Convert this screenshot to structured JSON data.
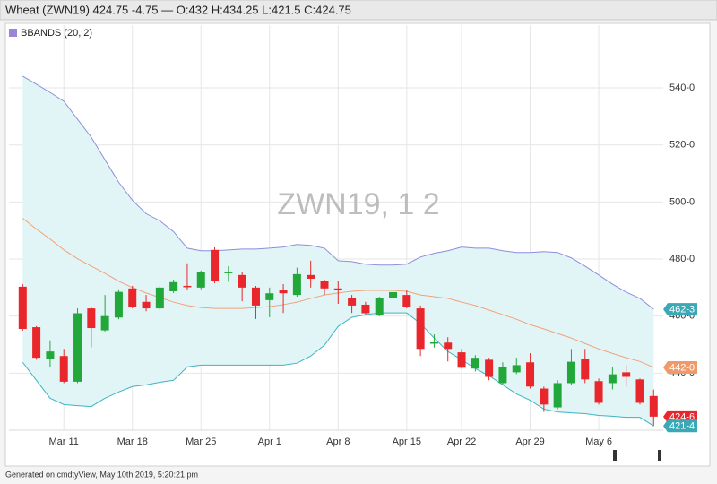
{
  "header": {
    "title": "Wheat (ZWN19) 424.75 -4.75 — O:432 H:434.25 L:421.5 C:424.75"
  },
  "footer": {
    "text": "Generated on cmdtyView, May 10th 2019, 5:20:21 pm"
  },
  "chart_data": {
    "type": "candlestick",
    "watermark": "ZWN19, 1 2",
    "categories": [
      null,
      null,
      null,
      "Mar 11",
      null,
      null,
      null,
      null,
      "Mar 18",
      null,
      null,
      null,
      null,
      "Mar 25",
      null,
      null,
      null,
      null,
      "Apr 1",
      null,
      null,
      null,
      null,
      "Apr 8",
      null,
      null,
      null,
      null,
      "Apr 15",
      null,
      null,
      null,
      "Apr 22",
      null,
      null,
      null,
      null,
      "Apr 29",
      null,
      null,
      null,
      null,
      "May 6",
      null,
      null,
      null,
      null
    ],
    "open": [
      470.3,
      456.1,
      445,
      446,
      437,
      462.7,
      455,
      459.5,
      469.7,
      465,
      462.7,
      468.7,
      470.6,
      470,
      483.2,
      475,
      474.4,
      470,
      465.6,
      469,
      467.4,
      474.4,
      472.2,
      469.7,
      466.5,
      464,
      460.5,
      466.5,
      467.4,
      462.7,
      450.5,
      450.7,
      447.3,
      441.6,
      444.7,
      436.5,
      440.3,
      443.8,
      434.6,
      428,
      436.5,
      445,
      437.2,
      436.5,
      440.3,
      437.8,
      432
    ],
    "high": [
      471.2,
      456.5,
      451.5,
      448.5,
      462.7,
      463.3,
      467.4,
      469.4,
      470.6,
      467.4,
      470.6,
      472.8,
      478.5,
      476,
      484.1,
      477.5,
      475.3,
      470.6,
      470,
      471.2,
      477,
      479.4,
      472.8,
      472.2,
      467.4,
      465,
      466.8,
      469.7,
      469,
      463.7,
      453.6,
      452.6,
      448.5,
      446.3,
      445.4,
      443.8,
      445.4,
      447,
      435.3,
      437.5,
      448.5,
      448.5,
      438.1,
      442.2,
      442.8,
      438.1,
      434.25
    ],
    "low": [
      454.9,
      444.7,
      442,
      436.5,
      436.5,
      449,
      454.6,
      458.9,
      462.7,
      461.7,
      462.1,
      468.1,
      469,
      469.4,
      471.5,
      472,
      465.2,
      459,
      459.6,
      461.1,
      466.8,
      470,
      467.4,
      464.3,
      461.1,
      460.5,
      459.9,
      465.6,
      462.7,
      446,
      449,
      444.1,
      441.6,
      440.6,
      437.5,
      435.9,
      439.7,
      434.6,
      426.4,
      427.4,
      435.9,
      436.5,
      429,
      434.3,
      435.3,
      429,
      421.5
    ],
    "close": [
      455.5,
      445.4,
      447.6,
      437,
      461,
      455.8,
      460,
      468.5,
      463.3,
      462.7,
      470,
      471.9,
      470.3,
      475.3,
      472.2,
      475.5,
      470,
      463.7,
      468,
      468,
      474.7,
      473.1,
      469.7,
      469,
      463.7,
      461,
      466.2,
      468.4,
      463.3,
      448.5,
      450.8,
      448.5,
      441.9,
      445.4,
      438.7,
      442.2,
      442.8,
      435.3,
      429,
      436.5,
      444,
      437.8,
      429.6,
      439.6,
      438.7,
      429.6,
      424.75
    ],
    "up_color": "#22a83a",
    "down_color": "#e8262b",
    "indicator": {
      "name": "BBANDS (20, 2)",
      "legend_color": "#9a86d8",
      "fill_color": "#e2f5f6",
      "upper_color": "#8e8edb",
      "middle_color": "#f0a27a",
      "lower_color": "#3cb4c2",
      "upper": [
        544.1,
        541.3,
        538.4,
        535.3,
        529,
        522.7,
        514.8,
        506.9,
        500.6,
        495.9,
        493.4,
        489.6,
        483.8,
        482.9,
        482.9,
        483.2,
        483.5,
        483.5,
        483.8,
        484.2,
        485.1,
        484.8,
        483.8,
        479.4,
        479.1,
        478.2,
        477.9,
        477.9,
        478.2,
        480.7,
        482,
        482.9,
        484.2,
        483.8,
        483.8,
        482.9,
        482.3,
        482.3,
        482.6,
        482.3,
        480.4,
        477.5,
        474.4,
        471.2,
        468.4,
        466.2,
        462.4
      ],
      "middle": [
        494.3,
        490.5,
        487,
        483.2,
        480.1,
        477.5,
        475,
        472.2,
        470,
        468.1,
        466.5,
        464.9,
        463.7,
        463,
        462.7,
        462.7,
        462.7,
        463,
        463.3,
        464,
        464.9,
        466.2,
        467.4,
        468.1,
        468.7,
        469,
        469,
        469,
        468.7,
        467.4,
        466.8,
        466.2,
        464.9,
        463.7,
        462.1,
        460.5,
        458.9,
        457,
        455.5,
        453.9,
        452.3,
        450.4,
        448.5,
        446.9,
        445.4,
        444.1,
        442
      ],
      "lower": [
        443.8,
        437.5,
        431.2,
        429,
        428.6,
        428.3,
        431.2,
        433.4,
        435.3,
        435.9,
        436.8,
        437.5,
        442.2,
        442.8,
        442.8,
        442.8,
        442.8,
        442.8,
        442.8,
        442.8,
        443.5,
        446,
        449.8,
        456.4,
        459.6,
        460.5,
        461.1,
        461.1,
        461.1,
        457.4,
        452.3,
        447.6,
        444.7,
        441.6,
        439.1,
        435.9,
        432.7,
        430.5,
        427.4,
        426.4,
        426.1,
        425.8,
        425.2,
        424.9,
        424.5,
        424.5,
        421.5
      ]
    },
    "ylim": [
      420,
      562
    ],
    "yticks": [
      {
        "value": 440,
        "label": "440-0"
      },
      {
        "value": 460,
        "label": "460-0"
      },
      {
        "value": 480,
        "label": "480-0"
      },
      {
        "value": 500,
        "label": "500-0"
      },
      {
        "value": 520,
        "label": "520-0"
      },
      {
        "value": 540,
        "label": "540-0"
      }
    ],
    "grid": true,
    "badges": [
      {
        "value": 462.375,
        "label": "462-3",
        "color": "#3aa9b5"
      },
      {
        "value": 442,
        "label": "442-0",
        "color": "#f09a6a"
      },
      {
        "value": 424.75,
        "label": "424-6",
        "color": "#e8262b"
      },
      {
        "value": 421.5,
        "label": "421-4",
        "color": "#3aa9b5"
      }
    ]
  }
}
